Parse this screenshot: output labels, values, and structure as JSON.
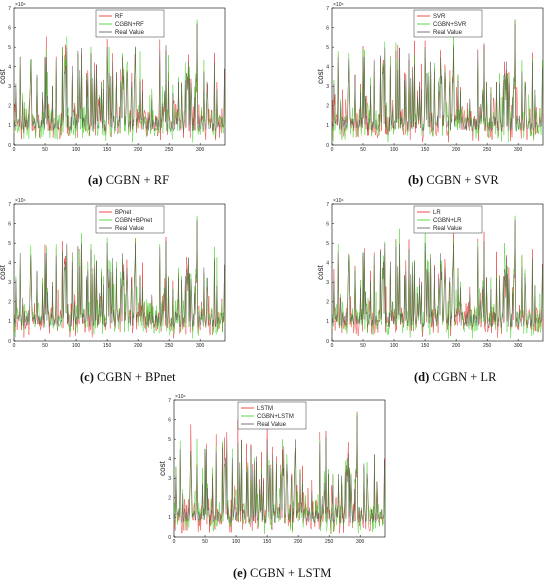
{
  "colors": {
    "pred_a": "#e8201c",
    "pred_b": "#38d01c",
    "real": "#555555"
  },
  "chart_data": [
    {
      "type": "line",
      "caption_tag": "(a)",
      "caption_text": " CGBN + RF",
      "ylabel": "cost",
      "y_exponent": "×10⁴",
      "xlim": [
        0,
        340
      ],
      "ylim": [
        0,
        7
      ],
      "xticks": [
        0,
        50,
        100,
        150,
        200,
        250,
        300
      ],
      "yticks": [
        0,
        1,
        2,
        3,
        4,
        5,
        6,
        7
      ],
      "legend_position": "top-center",
      "series": [
        {
          "name": "RF",
          "color": "#e8201c",
          "seed": 11
        },
        {
          "name": "CGBN+RF",
          "color": "#38d01c",
          "seed": 23
        },
        {
          "name": "Real Value",
          "color": "#555555",
          "seed": 7
        }
      ]
    },
    {
      "type": "line",
      "caption_tag": "(b)",
      "caption_text": " CGBN + SVR",
      "ylabel": "cost",
      "y_exponent": "×10⁴",
      "xlim": [
        0,
        340
      ],
      "ylim": [
        0,
        7
      ],
      "xticks": [
        0,
        50,
        100,
        150,
        200,
        250,
        300
      ],
      "yticks": [
        0,
        1,
        2,
        3,
        4,
        5,
        6,
        7
      ],
      "legend_position": "top-center",
      "series": [
        {
          "name": "SVR",
          "color": "#e8201c",
          "seed": 31
        },
        {
          "name": "CGBN+SVR",
          "color": "#38d01c",
          "seed": 43
        },
        {
          "name": "Real Value",
          "color": "#555555",
          "seed": 7
        }
      ]
    },
    {
      "type": "line",
      "caption_tag": "(c)",
      "caption_text": " CGBN + BPnet",
      "ylabel": "cost",
      "y_exponent": "×10⁴",
      "xlim": [
        0,
        340
      ],
      "ylim": [
        0,
        7
      ],
      "xticks": [
        0,
        50,
        100,
        150,
        200,
        250,
        300
      ],
      "yticks": [
        0,
        1,
        2,
        3,
        4,
        5,
        6,
        7
      ],
      "legend_position": "top-center",
      "series": [
        {
          "name": "BPnet",
          "color": "#e8201c",
          "seed": 53
        },
        {
          "name": "CGBN+BPnet",
          "color": "#38d01c",
          "seed": 61
        },
        {
          "name": "Real Value",
          "color": "#555555",
          "seed": 7
        }
      ]
    },
    {
      "type": "line",
      "caption_tag": "(d)",
      "caption_text": " CGBN + LR",
      "ylabel": "cost",
      "y_exponent": "×10⁴",
      "xlim": [
        0,
        340
      ],
      "ylim": [
        0,
        7
      ],
      "xticks": [
        0,
        50,
        100,
        150,
        200,
        250,
        300
      ],
      "yticks": [
        0,
        1,
        2,
        3,
        4,
        5,
        6,
        7
      ],
      "legend_position": "top-center",
      "series": [
        {
          "name": "LR",
          "color": "#e8201c",
          "seed": 71
        },
        {
          "name": "CGBN+LR",
          "color": "#38d01c",
          "seed": 83
        },
        {
          "name": "Real Value",
          "color": "#555555",
          "seed": 7
        }
      ]
    },
    {
      "type": "line",
      "caption_tag": "(e)",
      "caption_text": " CGBN + LSTM",
      "ylabel": "cost",
      "y_exponent": "×10⁴",
      "xlim": [
        0,
        340
      ],
      "ylim": [
        0,
        7
      ],
      "xticks": [
        0,
        50,
        100,
        150,
        200,
        250,
        300
      ],
      "yticks": [
        0,
        1,
        2,
        3,
        4,
        5,
        6,
        7
      ],
      "legend_position": "top-center",
      "series": [
        {
          "name": "LSTM",
          "color": "#e8201c",
          "seed": 97
        },
        {
          "name": "CGBN+LSTM",
          "color": "#38d01c",
          "seed": 101
        },
        {
          "name": "Real Value",
          "color": "#555555",
          "seed": 7
        }
      ]
    }
  ]
}
